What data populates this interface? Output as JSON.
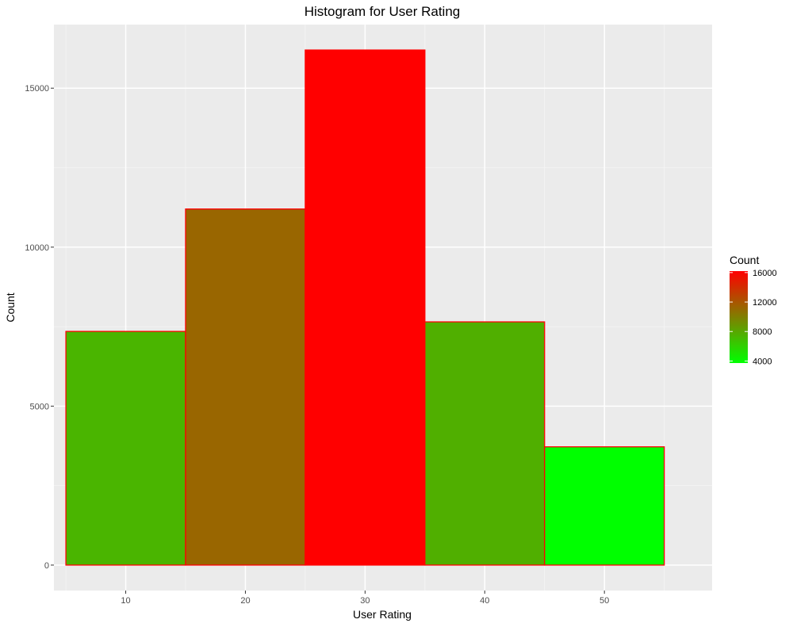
{
  "colors": {
    "panel_background": "#EBEBEB",
    "grid_major": "#FFFFFF",
    "grid_minor": "#F5F5F5",
    "bar_outline": "#FF0000",
    "tick_mark": "#333333",
    "gradient_low": "#00FF00",
    "gradient_high": "#FF0000"
  },
  "chart_data": {
    "type": "bar",
    "title": "Histogram for User Rating",
    "xlabel": "User Rating",
    "ylabel": "Count",
    "x_centers": [
      10,
      20,
      30,
      40,
      50
    ],
    "bin_width": 10,
    "values": [
      7350,
      11200,
      16200,
      7650,
      3720
    ],
    "xlim": [
      4,
      59
    ],
    "ylim": [
      -800,
      17000
    ],
    "x_ticks": [
      10,
      20,
      30,
      40,
      50
    ],
    "y_ticks": [
      0,
      5000,
      10000,
      15000
    ],
    "grid": true,
    "legend": {
      "title": "Count",
      "position": "right",
      "min": 3720,
      "max": 16200,
      "ticks": [
        4000,
        8000,
        12000,
        16000
      ]
    }
  }
}
